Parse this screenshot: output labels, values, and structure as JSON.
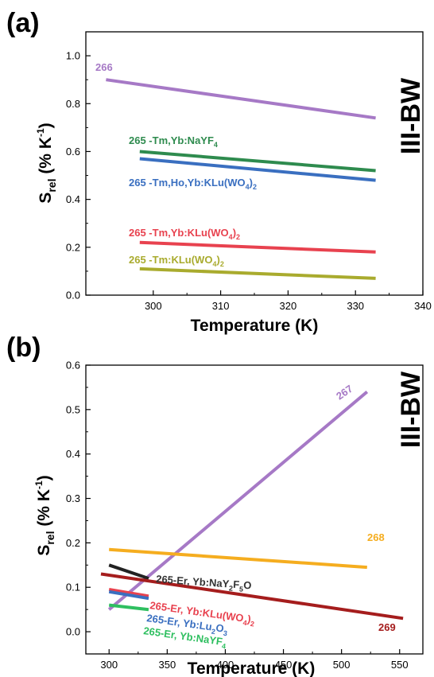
{
  "chart_data": [
    {
      "type": "line",
      "panel_label": "(a)",
      "side_label": "III-BW",
      "xlabel": "Temperature (K)",
      "ylabel": "Srel (% K-1)",
      "xlim": [
        290,
        340
      ],
      "ylim": [
        0.0,
        1.1
      ],
      "x_ticks": [
        300,
        310,
        320,
        330,
        340
      ],
      "y_ticks": [
        0.0,
        0.2,
        0.4,
        0.6,
        0.8,
        1.0
      ],
      "grid": false,
      "series": [
        {
          "name": "266",
          "color": "#a679c6",
          "x": [
            293,
            333
          ],
          "y": [
            0.9,
            0.74
          ]
        },
        {
          "name": "265 -Tm,Yb:NaYF4",
          "color": "#2e8b4e",
          "x": [
            298,
            333
          ],
          "y": [
            0.6,
            0.52
          ]
        },
        {
          "name": "265 -Tm,Ho,Yb:KLu(WO4)2",
          "color": "#3a6fc0",
          "x": [
            298,
            333
          ],
          "y": [
            0.57,
            0.48
          ]
        },
        {
          "name": "265 -Tm,Yb:KLu(WO4)2",
          "color": "#e8424f",
          "x": [
            298,
            333
          ],
          "y": [
            0.22,
            0.18
          ]
        },
        {
          "name": "265 -Tm:KLu(WO4)2",
          "color": "#a9ab2e",
          "x": [
            298,
            333
          ],
          "y": [
            0.11,
            0.07
          ]
        }
      ]
    },
    {
      "type": "line",
      "panel_label": "(b)",
      "side_label": "III-BW",
      "xlabel": "Temperature (K)",
      "ylabel": "Srel (% K-1)",
      "xlim": [
        280,
        570
      ],
      "ylim": [
        -0.05,
        0.6
      ],
      "x_ticks": [
        300,
        350,
        400,
        450,
        500,
        550
      ],
      "y_ticks": [
        0.0,
        0.1,
        0.2,
        0.3,
        0.4,
        0.5,
        0.6
      ],
      "grid": false,
      "series": [
        {
          "name": "267",
          "color": "#a679c6",
          "x": [
            300,
            522
          ],
          "y": [
            0.05,
            0.54
          ]
        },
        {
          "name": "268",
          "color": "#f5ad1f",
          "x": [
            300,
            522
          ],
          "y": [
            0.185,
            0.145
          ]
        },
        {
          "name": "265-Er, Yb:NaY2F5O",
          "color": "#222222",
          "x": [
            300,
            334
          ],
          "y": [
            0.15,
            0.12
          ]
        },
        {
          "name": "269",
          "color": "#a51d1d",
          "x": [
            293,
            553
          ],
          "y": [
            0.13,
            0.03
          ]
        },
        {
          "name": "265-Er, Yb:KLu(WO4)2",
          "color": "#e8424f",
          "x": [
            300,
            334
          ],
          "y": [
            0.095,
            0.08
          ]
        },
        {
          "name": "265-Er, Yb:Lu2O3",
          "color": "#3a6fc0",
          "x": [
            300,
            334
          ],
          "y": [
            0.09,
            0.075
          ]
        },
        {
          "name": "265-Er, Yb:NaYF4",
          "color": "#2fbf60",
          "x": [
            300,
            334
          ],
          "y": [
            0.06,
            0.05
          ]
        }
      ]
    }
  ]
}
